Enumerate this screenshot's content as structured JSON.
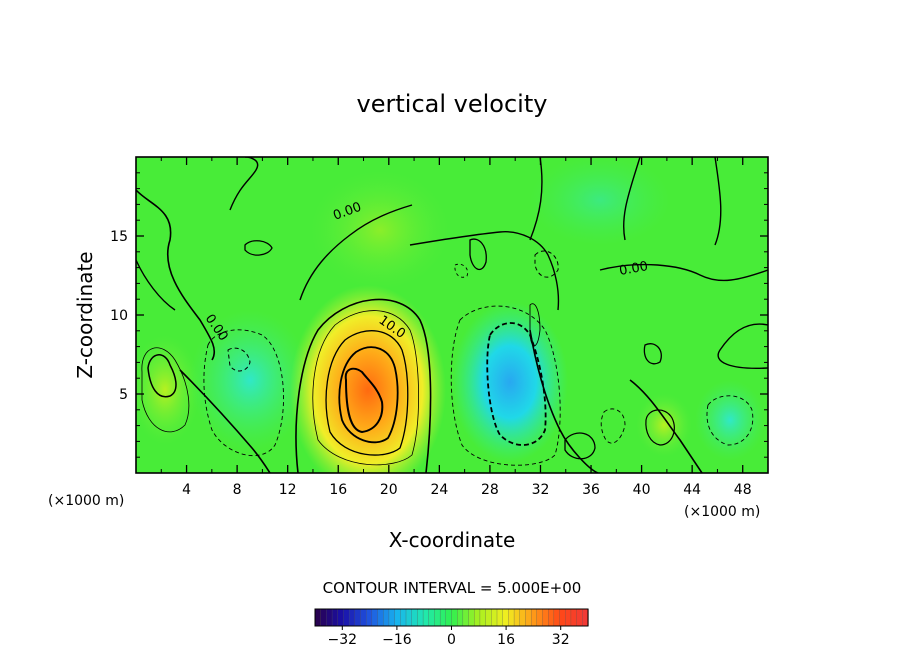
{
  "chart_data": {
    "type": "heatmap",
    "title": "vertical velocity",
    "xlabel": "X-coordinate",
    "ylabel": "Z-coordinate",
    "x_unit_left": "(×1000 m)",
    "x_unit_right": "(×1000 m)",
    "xlim": [
      0,
      50
    ],
    "ylim": [
      0,
      20
    ],
    "xticks": [
      4,
      8,
      12,
      16,
      20,
      24,
      28,
      32,
      36,
      40,
      44,
      48
    ],
    "yticks": [
      5,
      10,
      15
    ],
    "contour_interval_text": "CONTOUR INTERVAL = 5.000E+00",
    "contour_labels": [
      "0.00",
      "0.00",
      "10.0",
      "0.00"
    ],
    "colorbar": {
      "range": [
        -40,
        40
      ],
      "ticks": [
        -32,
        -16,
        0,
        16,
        32
      ],
      "colors": [
        "#2a0048",
        "#1a10a8",
        "#1f55e0",
        "#18b4ee",
        "#20e8b0",
        "#30f050",
        "#a8f020",
        "#f0ee20",
        "#ff9a18",
        "#ff4818",
        "#f03838"
      ]
    },
    "features": [
      {
        "name": "updraft core",
        "x": 17.5,
        "z": 4.8,
        "peak": 30
      },
      {
        "name": "downdraft core",
        "x": 29.5,
        "z": 5.0,
        "peak": -14
      },
      {
        "name": "weak updraft",
        "x": 2.0,
        "z": 5.5,
        "peak": 9
      },
      {
        "name": "weak downdraft",
        "x": 8.5,
        "z": 6.5,
        "peak": -5
      },
      {
        "name": "weak updraft",
        "x": 41.5,
        "z": 3.0,
        "peak": 8
      },
      {
        "name": "weak downdraft",
        "x": 46.5,
        "z": 4.0,
        "peak": -4
      }
    ]
  }
}
